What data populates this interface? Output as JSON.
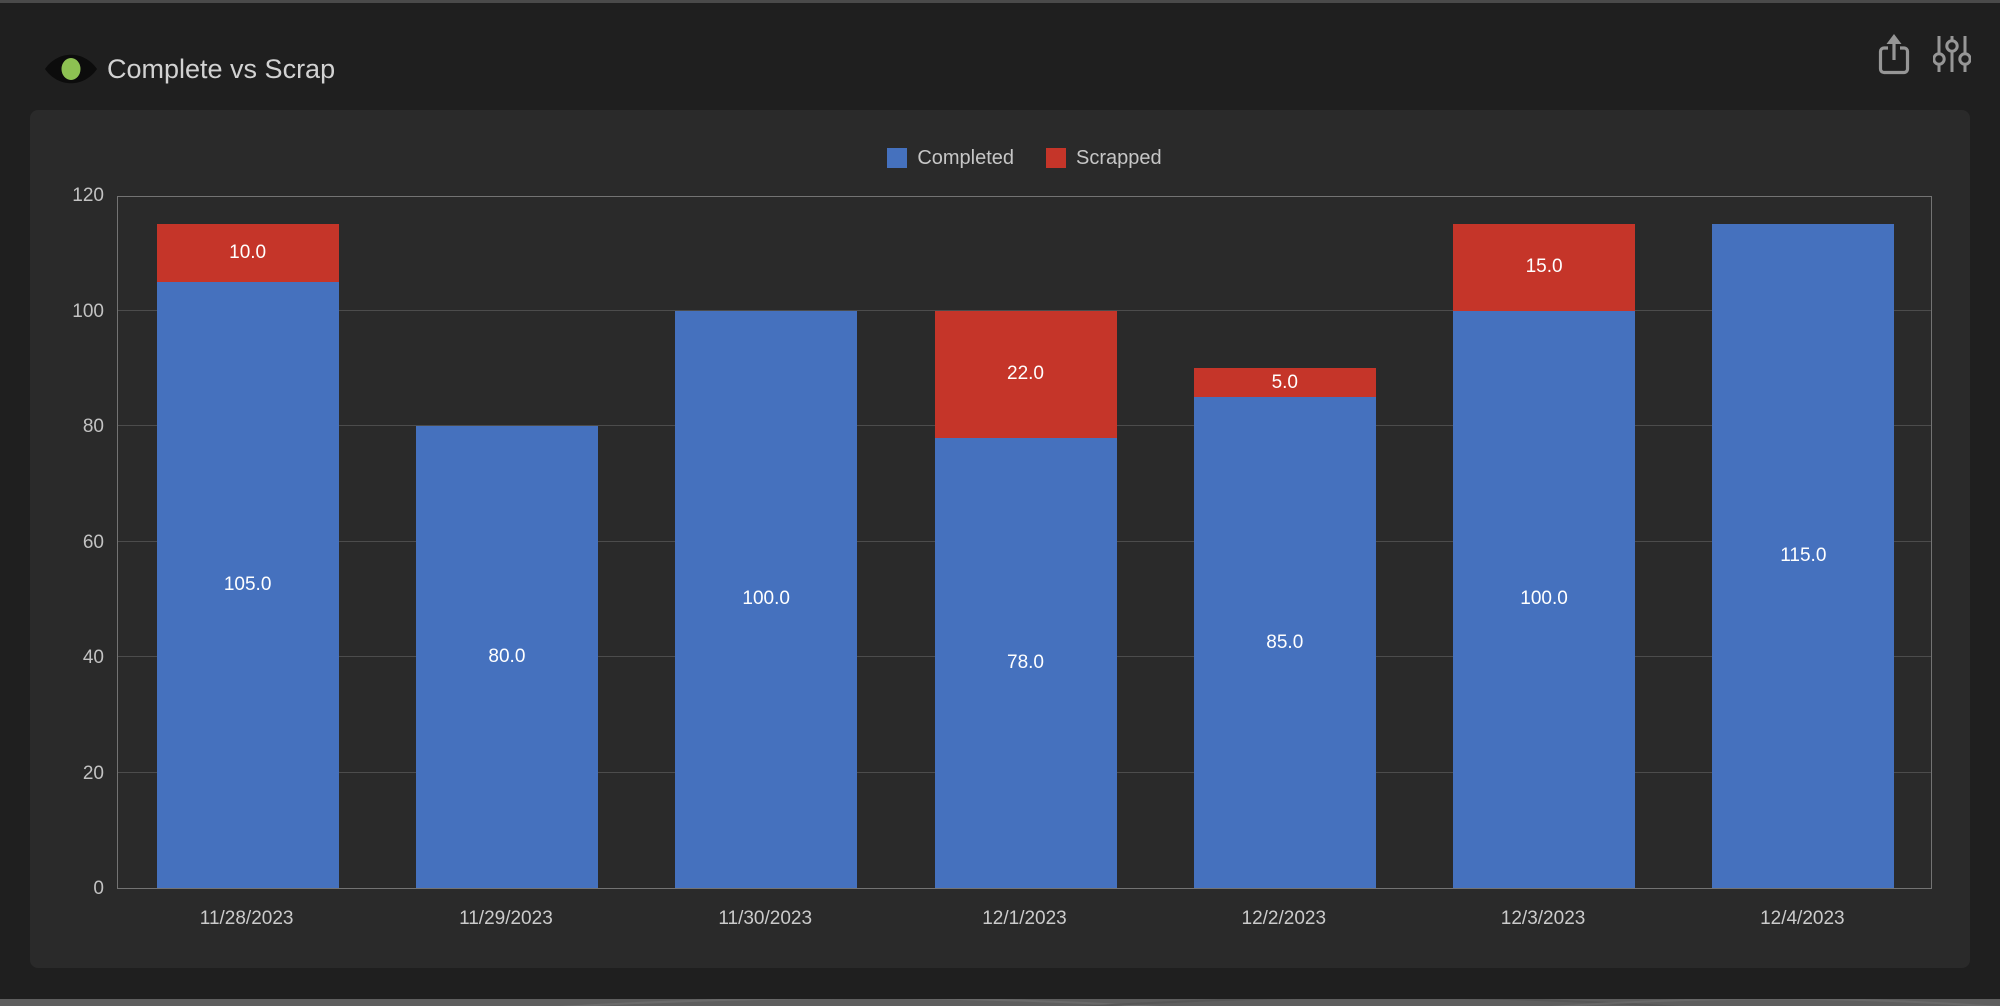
{
  "header": {
    "title": "Complete vs Scrap",
    "logo_icon": "eye-logo-icon",
    "actions": [
      {
        "label": "export",
        "icon": "share-icon"
      },
      {
        "label": "settings",
        "icon": "sliders-icon"
      }
    ]
  },
  "chart_data": {
    "type": "bar",
    "stacked": true,
    "title": "Complete vs Scrap",
    "categories": [
      "11/28/2023",
      "11/29/2023",
      "11/30/2023",
      "12/1/2023",
      "12/2/2023",
      "12/3/2023",
      "12/4/2023"
    ],
    "series": [
      {
        "name": "Completed",
        "color": "#4571BE",
        "values": [
          105,
          80,
          100,
          78,
          85,
          100,
          115
        ]
      },
      {
        "name": "Scrapped",
        "color": "#C53529",
        "values": [
          10,
          0,
          0,
          22,
          5,
          15,
          0
        ]
      }
    ],
    "value_label_decimals": 1,
    "xlabel": "",
    "ylabel": "",
    "ylim": [
      0,
      120
    ],
    "yticks": [
      0,
      20,
      40,
      60,
      80,
      100,
      120
    ],
    "grid": true,
    "legend_position": "top-center"
  },
  "colors": {
    "page_bg": "#1F1F1F",
    "top_strip": "#4A4A4A",
    "panel_bg": "#2A2A2A",
    "plot_border": "#737373",
    "gridline": "#4C4C4C",
    "axis_text": "#C2C2C2",
    "bar_label_text": "#FFFFFF",
    "title_text": "#D2D2D2",
    "icon_gray": "#969696",
    "logo_green": "#8DC152",
    "logo_black": "#0C0C0C",
    "bottom_strip": "#5E5E5E"
  }
}
